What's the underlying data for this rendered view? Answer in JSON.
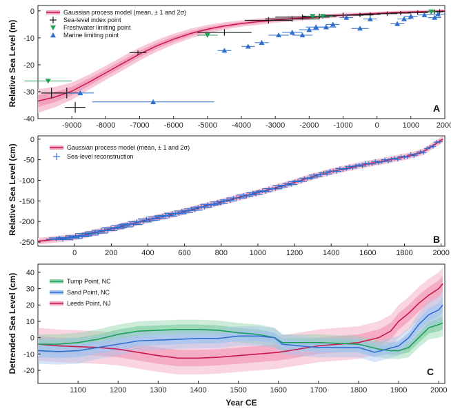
{
  "chart_data": [
    {
      "type": "line",
      "panel": "A",
      "ylabel": "Relative Sea Level (m)",
      "xlim": [
        -10000,
        2000
      ],
      "ylim": [
        -40,
        2
      ],
      "xticks": [
        -9000,
        -8000,
        -7000,
        -6000,
        -5000,
        -4000,
        -3000,
        -2000,
        -1000,
        0,
        1000,
        2000
      ],
      "yticks": [
        0,
        -10,
        -20,
        -30,
        -40
      ],
      "colors": {
        "gp": "#c8184a",
        "gp_band": "#f2a2bd",
        "index": "#1a1a1a",
        "fresh": "#22a05a",
        "marine": "#2e6fcf"
      },
      "legend": [
        {
          "label": "Gaussian process model (mean, ± 1 and 2σ)",
          "marker": "band"
        },
        {
          "label": "Sea-level index point",
          "marker": "plus"
        },
        {
          "label": "Freshwater limiting point",
          "marker": "down"
        },
        {
          "label": "Marine limiting point",
          "marker": "up"
        }
      ],
      "gp_mean": [
        [
          -10000,
          -33.5
        ],
        [
          -9500,
          -32
        ],
        [
          -9000,
          -29.8
        ],
        [
          -8500,
          -26.5
        ],
        [
          -8000,
          -23
        ],
        [
          -7500,
          -19.5
        ],
        [
          -7000,
          -16
        ],
        [
          -6500,
          -13
        ],
        [
          -6000,
          -10.5
        ],
        [
          -5500,
          -8.4
        ],
        [
          -5000,
          -6.8
        ],
        [
          -4500,
          -5.6
        ],
        [
          -4000,
          -4.7
        ],
        [
          -3500,
          -4
        ],
        [
          -3000,
          -3.4
        ],
        [
          -2500,
          -2.9
        ],
        [
          -2000,
          -2.5
        ],
        [
          -1500,
          -2
        ],
        [
          -1000,
          -1.6
        ],
        [
          -500,
          -1.2
        ],
        [
          0,
          -0.9
        ],
        [
          500,
          -0.6
        ],
        [
          1000,
          -0.4
        ],
        [
          1500,
          -0.2
        ],
        [
          2000,
          0
        ]
      ],
      "gp_band_width": [
        2.2,
        1.9,
        1.6,
        1.4,
        1.3,
        1.3,
        1.2,
        1.1,
        1.0,
        0.9,
        0.8,
        0.7,
        0.6,
        0.6,
        0.5,
        0.5,
        0.4,
        0.4,
        0.4,
        0.3,
        0.3,
        0.3,
        0.3,
        0.3,
        0.3
      ],
      "index_points": [
        [
          -9150,
          -30.5,
          400,
          1
        ],
        [
          -9600,
          -30.5,
          300,
          1
        ],
        [
          -8900,
          -35.8,
          300,
          1
        ],
        [
          -7050,
          -15.5,
          250,
          0.4
        ],
        [
          -4500,
          -8,
          800,
          0.6
        ],
        [
          -3200,
          -3.5,
          700,
          0.6
        ],
        [
          -2500,
          -3,
          800,
          0.5
        ],
        [
          -2200,
          -2.3,
          800,
          0.5
        ],
        [
          -1700,
          -2,
          500,
          0.5
        ],
        [
          -1000,
          -1.6,
          600,
          0.5
        ],
        [
          -500,
          -1.5,
          400,
          0.4
        ],
        [
          -200,
          -1.3,
          300,
          0.4
        ],
        [
          300,
          -1,
          300,
          0.4
        ],
        [
          700,
          -0.8,
          300,
          0.4
        ],
        [
          1200,
          -0.6,
          300,
          0.4
        ],
        [
          1700,
          -0.3,
          250,
          0.4
        ],
        [
          1850,
          -0.2,
          150,
          0.4
        ]
      ],
      "freshwater_points": [
        [
          -9700,
          -26,
          700
        ],
        [
          -5000,
          -9,
          300
        ],
        [
          -1900,
          -2,
          200
        ],
        [
          -1600,
          -2,
          300
        ],
        [
          1600,
          -0.3,
          150
        ]
      ],
      "marine_points": [
        [
          -8750,
          -30.5,
          400,
          0.8
        ],
        [
          -6600,
          -33.8,
          1800,
          0.8
        ],
        [
          -4500,
          -14.7,
          200,
          0.8
        ],
        [
          -3800,
          -13.2,
          200,
          0.6
        ],
        [
          -3400,
          -11.8,
          200,
          0.6
        ],
        [
          -2900,
          -9,
          300,
          0.6
        ],
        [
          -2500,
          -8,
          300,
          0.6
        ],
        [
          -2200,
          -9,
          300,
          0.6
        ],
        [
          -2000,
          -7,
          300,
          0.6
        ],
        [
          -1800,
          -6,
          300,
          0.6
        ],
        [
          -1500,
          -6,
          300,
          0.6
        ],
        [
          -1300,
          -5,
          200,
          0.6
        ],
        [
          -900,
          -2.5,
          200,
          0.6
        ],
        [
          -500,
          -6.5,
          250,
          0.6
        ],
        [
          -200,
          -3,
          200,
          0.6
        ],
        [
          600,
          -4.8,
          200,
          0.6
        ],
        [
          800,
          -3,
          200,
          0.6
        ],
        [
          1000,
          -2,
          200,
          0.6
        ],
        [
          1400,
          -1.5,
          200,
          0.5
        ],
        [
          1700,
          -2.5,
          200,
          0.5
        ],
        [
          1800,
          -1.2,
          200,
          0.5
        ]
      ]
    },
    {
      "type": "line",
      "panel": "B",
      "ylabel": "Relative Sea Level (cm)",
      "xlim": [
        -200,
        2020
      ],
      "ylim": [
        -260,
        8
      ],
      "xticks": [
        0,
        200,
        400,
        600,
        800,
        1000,
        1200,
        1400,
        1600,
        1800,
        2000
      ],
      "yticks": [
        0,
        -50,
        -100,
        -150,
        -200,
        -250
      ],
      "colors": {
        "gp": "#c8184a",
        "gp_band": "#f2a2bd",
        "recon": "#2e6fcf"
      },
      "legend": [
        {
          "label": "Gaussian process model (mean, ± 1 and 2σ)",
          "marker": "band"
        },
        {
          "label": "Sea-level reconstruction",
          "marker": "plus"
        }
      ],
      "gp_mean": [
        [
          -200,
          -248
        ],
        [
          0,
          -238
        ],
        [
          100,
          -228
        ],
        [
          200,
          -218
        ],
        [
          300,
          -207
        ],
        [
          400,
          -196
        ],
        [
          500,
          -186
        ],
        [
          600,
          -176
        ],
        [
          700,
          -164
        ],
        [
          800,
          -153
        ],
        [
          900,
          -141
        ],
        [
          1000,
          -130
        ],
        [
          1100,
          -118
        ],
        [
          1200,
          -105
        ],
        [
          1300,
          -91
        ],
        [
          1400,
          -79
        ],
        [
          1500,
          -69
        ],
        [
          1600,
          -60
        ],
        [
          1700,
          -52
        ],
        [
          1800,
          -43
        ],
        [
          1850,
          -38
        ],
        [
          1900,
          -31
        ],
        [
          1950,
          -17
        ],
        [
          2000,
          -3
        ],
        [
          2010,
          0
        ]
      ]
    },
    {
      "type": "line",
      "panel": "C",
      "ylabel": "Detrended Sea Level (cm)",
      "xlabel": "Year CE",
      "xlim": [
        1000,
        2015
      ],
      "ylim": [
        -28,
        45
      ],
      "xticks": [
        1100,
        1200,
        1300,
        1400,
        1500,
        1600,
        1700,
        1800,
        1900,
        2000
      ],
      "yticks": [
        40,
        30,
        20,
        10,
        0,
        -10,
        -20
      ],
      "series": [
        {
          "name": "Tump Point, NC",
          "color": "#1a9e55",
          "band": "#8ed3ab",
          "x": [
            1000,
            1050,
            1100,
            1150,
            1200,
            1250,
            1300,
            1350,
            1400,
            1450,
            1500,
            1550,
            1590,
            1610,
            1650,
            1700,
            1750,
            1800,
            1850,
            1880,
            1900,
            1925,
            1950,
            1975,
            2000,
            2010
          ],
          "y": [
            -4,
            -4,
            -3,
            -1,
            2,
            4,
            4.5,
            5,
            5,
            4.5,
            3,
            2,
            0,
            -3,
            -3,
            -3,
            -3.5,
            -4,
            -7,
            -8,
            -8,
            -6,
            0,
            6,
            8,
            9
          ],
          "sd": [
            3,
            3,
            3,
            3,
            3,
            3,
            3,
            3,
            3,
            3,
            3,
            3,
            3,
            2.5,
            2.5,
            2.5,
            2.5,
            2.5,
            2.5,
            2.5,
            2.5,
            3,
            3,
            3.5,
            4,
            4
          ]
        },
        {
          "name": "Sand Point, NC",
          "color": "#2e6fcf",
          "band": "#a8c4ee",
          "x": [
            1000,
            1050,
            1100,
            1150,
            1200,
            1250,
            1300,
            1350,
            1400,
            1450,
            1500,
            1550,
            1590,
            1610,
            1650,
            1700,
            1750,
            1800,
            1840,
            1870,
            1900,
            1925,
            1950,
            1975,
            2000,
            2010
          ],
          "y": [
            -8,
            -8.5,
            -8,
            -6,
            -4,
            -2,
            -1.5,
            -1,
            -0.5,
            -0.5,
            1,
            1,
            0,
            -4,
            -5,
            -6,
            -6,
            -6,
            -9,
            -7,
            -5,
            0,
            8,
            14,
            17,
            20
          ],
          "sd": [
            4,
            4,
            4,
            3.5,
            3.5,
            3,
            3,
            3,
            3,
            3,
            3,
            3,
            3,
            3,
            3,
            3,
            3,
            3,
            3,
            3,
            3,
            3,
            3.5,
            4,
            4,
            4.5
          ]
        },
        {
          "name": "Leeds Point, NJ",
          "color": "#c8184a",
          "band": "#f2a2bd",
          "x": [
            1000,
            1050,
            1100,
            1150,
            1200,
            1250,
            1300,
            1350,
            1400,
            1450,
            1500,
            1550,
            1600,
            1650,
            1700,
            1750,
            1800,
            1850,
            1880,
            1900,
            1925,
            1950,
            1975,
            2000,
            2010
          ],
          "y": [
            -4,
            -5,
            -5.5,
            -6,
            -7,
            -9,
            -11,
            -12.5,
            -12.5,
            -12,
            -11,
            -10,
            -9,
            -7,
            -5,
            -4,
            -3,
            0,
            4,
            10,
            15,
            21,
            26,
            30,
            33
          ],
          "sd": [
            5,
            5,
            5,
            5,
            5,
            5,
            5,
            5,
            5,
            5,
            5,
            5,
            5,
            5,
            5,
            5,
            5,
            5,
            5,
            5,
            5,
            5,
            5,
            5,
            5
          ]
        }
      ]
    }
  ],
  "panel_letters": [
    "A",
    "B",
    "C"
  ]
}
